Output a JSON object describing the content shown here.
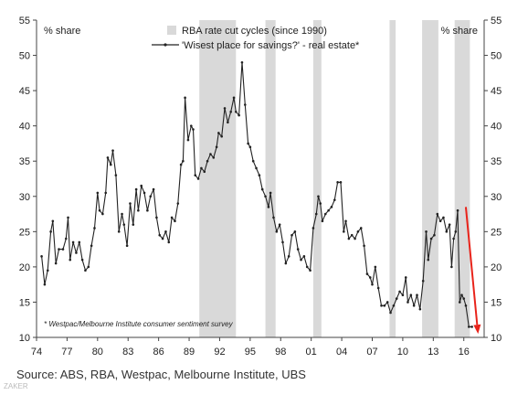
{
  "chart_data": {
    "type": "line",
    "title": "",
    "left_axis_label": "% share",
    "right_axis_label": "% share",
    "ylim": [
      10,
      55
    ],
    "yticks": [
      10,
      15,
      20,
      25,
      30,
      35,
      40,
      45,
      50,
      55
    ],
    "xlim": [
      1974,
      2018
    ],
    "xticks": [
      1974,
      1977,
      1980,
      1983,
      1986,
      1989,
      1992,
      1995,
      1998,
      2001,
      2004,
      2007,
      2010,
      2013,
      2016
    ],
    "xtick_labels": [
      "74",
      "77",
      "80",
      "83",
      "86",
      "89",
      "92",
      "95",
      "98",
      "01",
      "04",
      "07",
      "10",
      "13",
      "16"
    ],
    "legend": {
      "position": "top-center",
      "items": [
        {
          "label": "RBA rate cut cycles (since 1990)",
          "kind": "shaded-band",
          "color": "#d9d9d9"
        },
        {
          "label": "'Wisest place for savings?' - real estate*",
          "kind": "line-with-markers",
          "color": "#222222"
        }
      ]
    },
    "shaded_periods": [
      [
        1990.0,
        1993.6
      ],
      [
        1996.5,
        1997.5
      ],
      [
        2001.2,
        2002.0
      ],
      [
        2008.7,
        2009.3
      ],
      [
        2011.9,
        2013.5
      ],
      [
        2015.1,
        2016.6
      ]
    ],
    "series": [
      {
        "name": "'Wisest place for savings?' - real estate*",
        "color": "#222222",
        "points": [
          [
            1974.5,
            21.5
          ],
          [
            1974.8,
            17.5
          ],
          [
            1975.1,
            19.5
          ],
          [
            1975.4,
            25.0
          ],
          [
            1975.6,
            26.5
          ],
          [
            1975.9,
            20.5
          ],
          [
            1976.2,
            22.5
          ],
          [
            1976.6,
            22.5
          ],
          [
            1976.9,
            24.0
          ],
          [
            1977.1,
            27.0
          ],
          [
            1977.3,
            21.0
          ],
          [
            1977.6,
            23.5
          ],
          [
            1977.9,
            22.0
          ],
          [
            1978.2,
            23.5
          ],
          [
            1978.5,
            21.0
          ],
          [
            1978.8,
            19.5
          ],
          [
            1979.1,
            20.0
          ],
          [
            1979.4,
            23.0
          ],
          [
            1979.7,
            25.5
          ],
          [
            1980.0,
            30.5
          ],
          [
            1980.2,
            28.0
          ],
          [
            1980.5,
            27.5
          ],
          [
            1980.8,
            30.5
          ],
          [
            1981.0,
            35.5
          ],
          [
            1981.3,
            34.5
          ],
          [
            1981.5,
            36.5
          ],
          [
            1981.8,
            33.0
          ],
          [
            1982.1,
            25.0
          ],
          [
            1982.4,
            27.5
          ],
          [
            1982.6,
            26.0
          ],
          [
            1982.9,
            23.0
          ],
          [
            1983.2,
            29.0
          ],
          [
            1983.5,
            26.0
          ],
          [
            1983.8,
            31.0
          ],
          [
            1984.0,
            28.0
          ],
          [
            1984.3,
            31.5
          ],
          [
            1984.6,
            30.5
          ],
          [
            1984.9,
            28.0
          ],
          [
            1985.2,
            30.0
          ],
          [
            1985.5,
            31.0
          ],
          [
            1985.8,
            27.0
          ],
          [
            1986.1,
            24.5
          ],
          [
            1986.4,
            24.0
          ],
          [
            1986.7,
            25.0
          ],
          [
            1987.0,
            23.5
          ],
          [
            1987.3,
            27.0
          ],
          [
            1987.6,
            26.5
          ],
          [
            1987.9,
            29.0
          ],
          [
            1988.2,
            34.5
          ],
          [
            1988.4,
            35.0
          ],
          [
            1988.6,
            44.0
          ],
          [
            1988.9,
            38.0
          ],
          [
            1989.2,
            40.0
          ],
          [
            1989.4,
            39.5
          ],
          [
            1989.6,
            33.0
          ],
          [
            1989.9,
            32.5
          ],
          [
            1990.2,
            34.0
          ],
          [
            1990.5,
            33.5
          ],
          [
            1990.8,
            35.0
          ],
          [
            1991.1,
            36.0
          ],
          [
            1991.4,
            35.5
          ],
          [
            1991.7,
            37.0
          ],
          [
            1991.9,
            39.0
          ],
          [
            1992.2,
            38.5
          ],
          [
            1992.5,
            42.5
          ],
          [
            1992.8,
            40.5
          ],
          [
            1993.1,
            42.0
          ],
          [
            1993.4,
            44.0
          ],
          [
            1993.6,
            42.0
          ],
          [
            1993.9,
            41.5
          ],
          [
            1994.2,
            49.0
          ],
          [
            1994.5,
            43.0
          ],
          [
            1994.8,
            37.5
          ],
          [
            1995.0,
            37.0
          ],
          [
            1995.3,
            35.0
          ],
          [
            1995.6,
            34.0
          ],
          [
            1995.9,
            33.0
          ],
          [
            1996.2,
            31.0
          ],
          [
            1996.5,
            30.0
          ],
          [
            1996.8,
            28.5
          ],
          [
            1997.0,
            30.5
          ],
          [
            1997.3,
            27.0
          ],
          [
            1997.6,
            25.0
          ],
          [
            1997.9,
            26.0
          ],
          [
            1998.2,
            23.5
          ],
          [
            1998.5,
            20.5
          ],
          [
            1998.8,
            21.5
          ],
          [
            1999.1,
            24.5
          ],
          [
            1999.4,
            25.0
          ],
          [
            1999.7,
            22.5
          ],
          [
            2000.0,
            21.0
          ],
          [
            2000.3,
            21.5
          ],
          [
            2000.6,
            20.0
          ],
          [
            2000.9,
            19.5
          ],
          [
            2001.2,
            25.5
          ],
          [
            2001.5,
            27.5
          ],
          [
            2001.7,
            30.0
          ],
          [
            2001.9,
            29.0
          ],
          [
            2002.1,
            26.5
          ],
          [
            2002.4,
            27.5
          ],
          [
            2002.7,
            28.0
          ],
          [
            2003.0,
            28.5
          ],
          [
            2003.3,
            29.5
          ],
          [
            2003.6,
            32.0
          ],
          [
            2003.9,
            32.0
          ],
          [
            2004.2,
            25.0
          ],
          [
            2004.4,
            26.5
          ],
          [
            2004.7,
            24.0
          ],
          [
            2005.0,
            24.5
          ],
          [
            2005.3,
            24.0
          ],
          [
            2005.6,
            25.0
          ],
          [
            2005.9,
            25.5
          ],
          [
            2006.2,
            23.0
          ],
          [
            2006.5,
            19.0
          ],
          [
            2006.8,
            18.5
          ],
          [
            2007.0,
            17.5
          ],
          [
            2007.3,
            20.0
          ],
          [
            2007.6,
            17.0
          ],
          [
            2007.9,
            14.5
          ],
          [
            2008.2,
            14.5
          ],
          [
            2008.5,
            15.0
          ],
          [
            2008.8,
            13.5
          ],
          [
            2009.1,
            14.5
          ],
          [
            2009.4,
            15.5
          ],
          [
            2009.7,
            16.5
          ],
          [
            2010.0,
            16.0
          ],
          [
            2010.3,
            18.5
          ],
          [
            2010.5,
            15.0
          ],
          [
            2010.8,
            16.0
          ],
          [
            2011.1,
            14.5
          ],
          [
            2011.4,
            16.0
          ],
          [
            2011.7,
            14.0
          ],
          [
            2012.0,
            18.0
          ],
          [
            2012.3,
            25.0
          ],
          [
            2012.5,
            21.0
          ],
          [
            2012.8,
            24.0
          ],
          [
            2013.1,
            24.5
          ],
          [
            2013.4,
            27.5
          ],
          [
            2013.7,
            26.5
          ],
          [
            2014.0,
            27.0
          ],
          [
            2014.3,
            25.0
          ],
          [
            2014.6,
            26.0
          ],
          [
            2014.8,
            20.0
          ],
          [
            2015.0,
            24.0
          ],
          [
            2015.2,
            25.0
          ],
          [
            2015.4,
            28.0
          ],
          [
            2015.6,
            15.0
          ],
          [
            2015.8,
            16.0
          ],
          [
            2016.0,
            15.5
          ],
          [
            2016.2,
            14.5
          ],
          [
            2016.5,
            11.5
          ],
          [
            2016.8,
            11.5
          ]
        ]
      }
    ],
    "trend_arrow": {
      "from": [
        2016.2,
        28.5
      ],
      "to": [
        2017.4,
        10.5
      ],
      "color": "#e8231a"
    },
    "footnote": "* Westpac/Melbourne Institute consumer sentiment survey"
  },
  "source": "Source:  ABS, RBA, Westpac, Melbourne Institute, UBS",
  "brand_watermark": "ZAKER"
}
